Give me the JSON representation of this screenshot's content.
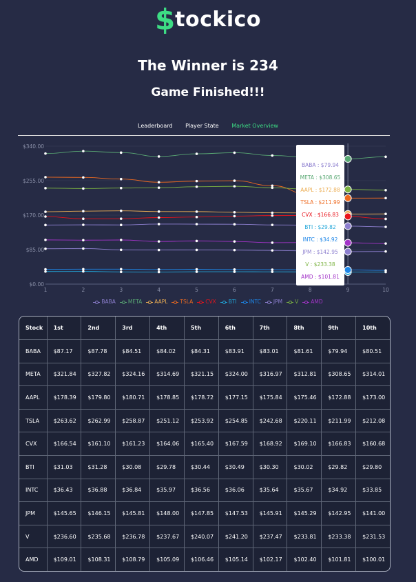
{
  "brand": {
    "dollar": "$",
    "name": "tockico"
  },
  "headline": "The Winner is 234",
  "status": "Game Finished!!!",
  "tabs": [
    "Leaderboard",
    "Player State",
    "Market Overview"
  ],
  "active_tab": 2,
  "chart_data": {
    "type": "line",
    "x": [
      1,
      2,
      3,
      4,
      5,
      6,
      7,
      8,
      9,
      10
    ],
    "ylim": [
      0,
      340
    ],
    "yticks": [
      "$0.00",
      "$85.00",
      "$170.00",
      "$255.00",
      "$340.00"
    ],
    "xticks": [
      "1",
      "2",
      "3",
      "4",
      "5",
      "6",
      "7",
      "8",
      "9",
      "10"
    ],
    "legend_position": "bottom",
    "hover_index": 9,
    "series": [
      {
        "name": "BABA",
        "color": "#8d7fcf",
        "values": [
          87.17,
          87.78,
          84.51,
          84.02,
          84.31,
          83.91,
          83.01,
          81.61,
          79.94,
          80.51
        ]
      },
      {
        "name": "META",
        "color": "#5aa974",
        "values": [
          321.84,
          327.82,
          324.16,
          314.69,
          321.15,
          324.0,
          316.97,
          312.81,
          308.65,
          314.01
        ]
      },
      {
        "name": "AAPL",
        "color": "#ecae54",
        "values": [
          178.39,
          179.8,
          180.71,
          178.85,
          178.72,
          177.15,
          175.84,
          175.46,
          172.88,
          173.0
        ]
      },
      {
        "name": "TSLA",
        "color": "#ee6a20",
        "values": [
          263.62,
          262.99,
          258.87,
          251.12,
          253.92,
          254.85,
          242.68,
          220.11,
          211.99,
          212.08
        ]
      },
      {
        "name": "CVX",
        "color": "#e8141c",
        "values": [
          166.54,
          161.1,
          161.23,
          164.06,
          165.4,
          167.59,
          168.92,
          169.1,
          166.83,
          160.68
        ]
      },
      {
        "name": "BTI",
        "color": "#21a6d9",
        "values": [
          31.03,
          31.28,
          30.08,
          29.78,
          30.44,
          30.49,
          30.3,
          30.02,
          29.82,
          29.8
        ]
      },
      {
        "name": "INTC",
        "color": "#1d86e8",
        "values": [
          36.43,
          36.88,
          36.84,
          35.97,
          36.56,
          36.06,
          35.64,
          35.67,
          34.92,
          33.85
        ]
      },
      {
        "name": "JPM",
        "color": "#8d7fcf",
        "values": [
          145.65,
          146.15,
          145.81,
          148.0,
          147.85,
          147.53,
          145.91,
          145.29,
          142.95,
          141.0
        ]
      },
      {
        "name": "V",
        "color": "#7cb342",
        "values": [
          236.6,
          235.68,
          236.78,
          237.67,
          240.07,
          241.2,
          237.47,
          233.81,
          233.38,
          231.53
        ]
      },
      {
        "name": "AMD",
        "color": "#a334c8",
        "values": [
          109.01,
          108.31,
          108.79,
          105.09,
          106.46,
          105.14,
          102.17,
          102.4,
          101.81,
          100.01
        ]
      }
    ]
  },
  "tooltip_items": [
    {
      "text": "BABA : $79.94",
      "color": "#8d7fcf"
    },
    {
      "text": "META : $308.65",
      "color": "#5aa974"
    },
    {
      "text": "AAPL : $172.88",
      "color": "#ecae54"
    },
    {
      "text": "TSLA : $211.99",
      "color": "#ee6a20"
    },
    {
      "text": "CVX : $166.83",
      "color": "#e8141c"
    },
    {
      "text": "BTI : $29.82",
      "color": "#21a6d9"
    },
    {
      "text": "INTC : $34.92",
      "color": "#1d86e8"
    },
    {
      "text": "JPM : $142.95",
      "color": "#8d7fcf"
    },
    {
      "text": "V : $233.38",
      "color": "#7cb342"
    },
    {
      "text": "AMD : $101.81",
      "color": "#a334c8"
    }
  ],
  "table": {
    "headers": [
      "Stock",
      "1st",
      "2nd",
      "3rd",
      "4th",
      "5th",
      "6th",
      "7th",
      "8th",
      "9th",
      "10th"
    ],
    "rows": [
      [
        "BABA",
        "$87.17",
        "$87.78",
        "$84.51",
        "$84.02",
        "$84.31",
        "$83.91",
        "$83.01",
        "$81.61",
        "$79.94",
        "$80.51"
      ],
      [
        "META",
        "$321.84",
        "$327.82",
        "$324.16",
        "$314.69",
        "$321.15",
        "$324.00",
        "$316.97",
        "$312.81",
        "$308.65",
        "$314.01"
      ],
      [
        "AAPL",
        "$178.39",
        "$179.80",
        "$180.71",
        "$178.85",
        "$178.72",
        "$177.15",
        "$175.84",
        "$175.46",
        "$172.88",
        "$173.00"
      ],
      [
        "TSLA",
        "$263.62",
        "$262.99",
        "$258.87",
        "$251.12",
        "$253.92",
        "$254.85",
        "$242.68",
        "$220.11",
        "$211.99",
        "$212.08"
      ],
      [
        "CVX",
        "$166.54",
        "$161.10",
        "$161.23",
        "$164.06",
        "$165.40",
        "$167.59",
        "$168.92",
        "$169.10",
        "$166.83",
        "$160.68"
      ],
      [
        "BTI",
        "$31.03",
        "$31.28",
        "$30.08",
        "$29.78",
        "$30.44",
        "$30.49",
        "$30.30",
        "$30.02",
        "$29.82",
        "$29.80"
      ],
      [
        "INTC",
        "$36.43",
        "$36.88",
        "$36.84",
        "$35.97",
        "$36.56",
        "$36.06",
        "$35.64",
        "$35.67",
        "$34.92",
        "$33.85"
      ],
      [
        "JPM",
        "$145.65",
        "$146.15",
        "$145.81",
        "$148.00",
        "$147.85",
        "$147.53",
        "$145.91",
        "$145.29",
        "$142.95",
        "$141.00"
      ],
      [
        "V",
        "$236.60",
        "$235.68",
        "$236.78",
        "$237.67",
        "$240.07",
        "$241.20",
        "$237.47",
        "$233.81",
        "$233.38",
        "$231.53"
      ],
      [
        "AMD",
        "$109.01",
        "$108.31",
        "$108.79",
        "$105.09",
        "$106.46",
        "$105.14",
        "$102.17",
        "$102.40",
        "$101.81",
        "$100.01"
      ]
    ]
  }
}
